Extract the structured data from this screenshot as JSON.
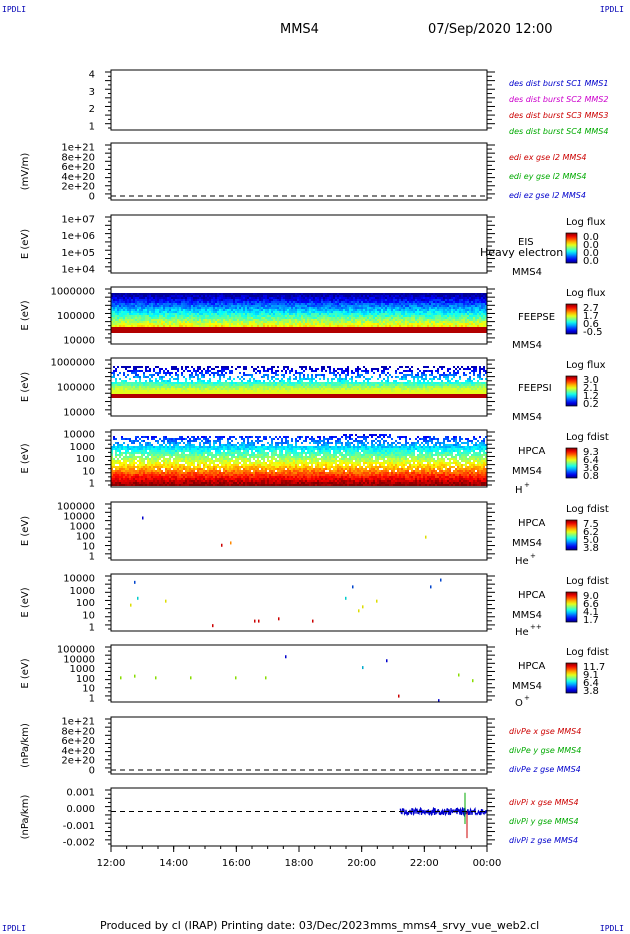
{
  "header": {
    "left_corner": "IPDLI",
    "right_corner": "IPDLI",
    "spacecraft": "MMS4",
    "datetime": "07/Sep/2020 12:00"
  },
  "footer": {
    "left_corner": "IPDLI",
    "right_corner": "IPDLI",
    "produced": "Produced by cl (IRAP)",
    "printing": "Printing date: 03/Dec/2023",
    "file": "mms_mms4_srvy_vue_web2.cl"
  },
  "colors": {
    "frame": "#000000",
    "sc1": "#0000cc",
    "sc2": "#cc00cc",
    "sc3": "#cc0000",
    "sc4": "#00aa00"
  },
  "chart_data": [
    {
      "type": "line",
      "panel": "des dist burst",
      "ticks": [
        "4",
        "3",
        "2",
        "1"
      ],
      "legend": [
        {
          "text": "des dist burst SC1 MMS1",
          "color": "#0000cc"
        },
        {
          "text": "des dist burst SC2 MMS2",
          "color": "#cc00cc"
        },
        {
          "text": "des dist burst SC3 MMS3",
          "color": "#cc0000"
        },
        {
          "text": "des dist burst SC4 MMS4",
          "color": "#00aa00"
        }
      ]
    },
    {
      "type": "line",
      "panel": "edi e gse l2",
      "ylabel": "(mV/m)",
      "ticks": [
        "1e+21",
        "8e+20",
        "6e+20",
        "4e+20",
        "2e+20",
        "0"
      ],
      "legend": [
        {
          "text": "edi ex gse l2 MMS4",
          "color": "#cc0000"
        },
        {
          "text": "edi ey gse l2 MMS4",
          "color": "#00aa00"
        },
        {
          "text": "edi ez gse l2 MMS4",
          "color": "#0000cc"
        }
      ]
    },
    {
      "type": "heatmap",
      "panel": "EIS",
      "ylabel": "E (eV)",
      "ticks": [
        "1e+07",
        "1e+06",
        "1e+05",
        "1e+04"
      ],
      "labels": [
        "EIS",
        "MMS4"
      ],
      "overlay": "Heavy electron to",
      "colorbar": {
        "title": "Log flux",
        "ticks": [
          "0.0",
          "0.0",
          "0.0",
          "0.0"
        ]
      }
    },
    {
      "type": "heatmap",
      "panel": "FEEPSE",
      "ylabel": "E (eV)",
      "ticks": [
        "1000000",
        "100000",
        "10000"
      ],
      "labels": [
        "FEEPSE",
        "MMS4"
      ],
      "colorbar": {
        "title": "Log flux",
        "ticks": [
          "2.7",
          "1.7",
          "0.6",
          "-0.5"
        ]
      }
    },
    {
      "type": "heatmap",
      "panel": "FEEPSI",
      "ylabel": "E (eV)",
      "ticks": [
        "1000000",
        "100000",
        "10000"
      ],
      "labels": [
        "FEEPSI",
        "MMS4"
      ],
      "colorbar": {
        "title": "Log flux",
        "ticks": [
          "3.0",
          "2.1",
          "1.2",
          "0.2"
        ]
      }
    },
    {
      "type": "heatmap",
      "panel": "HPCA H+",
      "ylabel": "E (eV)",
      "ticks": [
        "10000",
        "1000",
        "100",
        "10",
        "1"
      ],
      "labels": [
        "HPCA",
        "MMS4"
      ],
      "species": "H",
      "charge": "+",
      "colorbar": {
        "title": "Log fdist",
        "ticks": [
          "9.3",
          "6.4",
          "3.6",
          "0.8"
        ]
      }
    },
    {
      "type": "heatmap",
      "panel": "HPCA He+",
      "ylabel": "E (eV)",
      "ticks": [
        "100000",
        "10000",
        "1000",
        "100",
        "10",
        "1"
      ],
      "labels": [
        "HPCA",
        "MMS4"
      ],
      "species": "He",
      "charge": "+",
      "colorbar": {
        "title": "Log fdist",
        "ticks": [
          "7.5",
          "6.2",
          "5.0",
          "3.8"
        ]
      }
    },
    {
      "type": "heatmap",
      "panel": "HPCA He++",
      "ylabel": "E (eV)",
      "ticks": [
        "10000",
        "1000",
        "100",
        "10",
        "1"
      ],
      "labels": [
        "HPCA",
        "MMS4"
      ],
      "species": "He",
      "charge": "++",
      "colorbar": {
        "title": "Log fdist",
        "ticks": [
          "9.0",
          "6.6",
          "4.1",
          "1.7"
        ]
      }
    },
    {
      "type": "heatmap",
      "panel": "HPCA O+",
      "ylabel": "E (eV)",
      "ticks": [
        "100000",
        "10000",
        "1000",
        "100",
        "10",
        "1"
      ],
      "labels": [
        "HPCA",
        "MMS4"
      ],
      "species": "O",
      "charge": "+",
      "colorbar": {
        "title": "Log fdist",
        "ticks": [
          "11.7",
          "9.1",
          "6.4",
          "3.8"
        ]
      }
    },
    {
      "type": "line",
      "panel": "divPe gse",
      "ylabel": "(nPa/km)",
      "ticks": [
        "1e+21",
        "8e+20",
        "6e+20",
        "4e+20",
        "2e+20",
        "0"
      ],
      "legend": [
        {
          "text": "divPe x gse MMS4",
          "color": "#cc0000"
        },
        {
          "text": "divPe y gse MMS4",
          "color": "#00aa00"
        },
        {
          "text": "divPe z gse MMS4",
          "color": "#0000cc"
        }
      ]
    },
    {
      "type": "line",
      "panel": "divPi gse",
      "ylabel": "(nPa/km)",
      "ticks": [
        "0.001",
        "0.000",
        "-0.001",
        "-0.002"
      ],
      "ylim": [
        -0.0022,
        0.0015
      ],
      "legend": [
        {
          "text": "divPi x gse MMS4",
          "color": "#cc0000"
        },
        {
          "text": "divPi y gse MMS4",
          "color": "#00aa00"
        },
        {
          "text": "divPi z gse MMS4",
          "color": "#0000cc"
        }
      ],
      "x_coverage": [
        "21:15",
        "00:00"
      ]
    }
  ],
  "xaxis": {
    "ticks": [
      "12:00",
      "14:00",
      "16:00",
      "18:00",
      "20:00",
      "22:00",
      "00:00"
    ]
  }
}
